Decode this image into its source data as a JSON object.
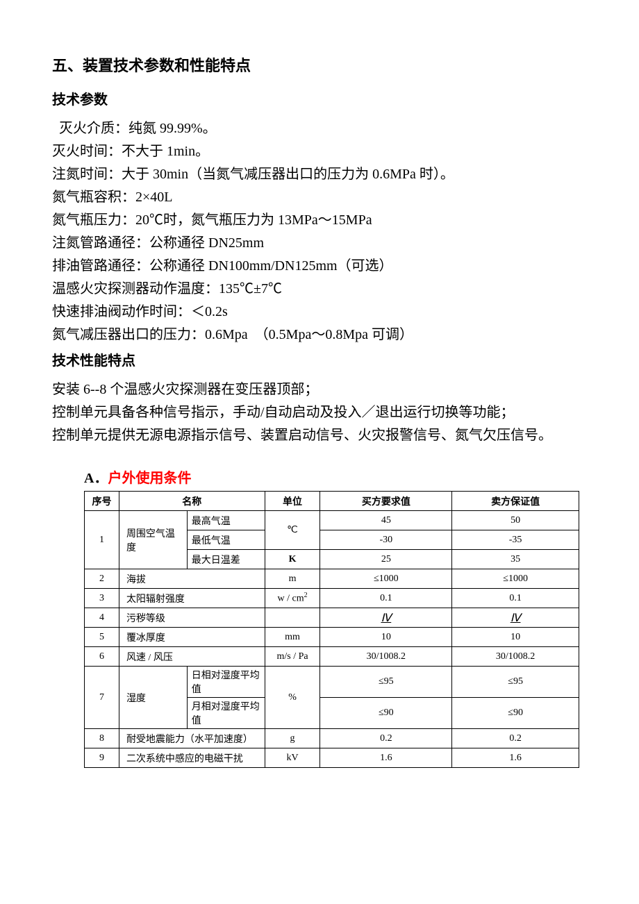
{
  "heading_main": "五、装置技术参数和性能特点",
  "heading_tech_params": "技术参数",
  "tech_params": [
    "灭火介质：纯氮 99.99%。",
    "灭火时间：不大于 1min。",
    "注氮时间：大于 30min（当氮气减压器出口的压力为 0.6MPa 时）。",
    "氮气瓶容积：2×40L",
    "氮气瓶压力：20℃时，氮气瓶压力为 13MPa～15MPa",
    "注氮管路通径：公称通径 DN25mm",
    "排油管路通径：公称通径 DN100mm/DN125mm（可选）",
    "温感火灾探测器动作温度：135℃±7℃",
    "快速排油阀动作时间：＜0.2s",
    "氮气减压器出口的压力：0.6Mpa　（0.5Mpa～0.8Mpa 可调）"
  ],
  "heading_tech_feature": "技术性能特点",
  "tech_features": [
    "安装 6--8 个温感火灾探测器在变压器顶部；",
    "控制单元具备各种信号指示，手动/自动启动及投入／退出运行切换等功能；",
    "控制单元提供无源电源指示信号、装置启动信号、火灾报警信号、氮气欠压信号。"
  ],
  "section_a": {
    "prefix": "A．",
    "title": "户外使用条件",
    "headers": {
      "seq": "序号",
      "name": "名称",
      "unit": "单位",
      "buyer": "买方要求值",
      "seller": "卖方保证值"
    },
    "rows": [
      {
        "seq": "1",
        "name": "周围空气温度",
        "sub": "最高气温",
        "unit": "℃",
        "buyer": "45",
        "seller": "50"
      },
      {
        "sub": "最低气温",
        "buyer": "-30",
        "seller": "-35"
      },
      {
        "sub": "最大日温差",
        "unit": "K",
        "unit_bold": true,
        "buyer": "25",
        "seller": "35"
      },
      {
        "seq": "2",
        "name": "海拔",
        "unit": "m",
        "buyer": "≤1000",
        "seller": "≤1000"
      },
      {
        "seq": "3",
        "name": "太阳辐射强度",
        "unit_html": "w / cm<sup>2</sup>",
        "buyer": "0.1",
        "seller": "0.1"
      },
      {
        "seq": "4",
        "name": "污秽等级",
        "unit": "",
        "buyer_roman": "Ⅳ",
        "seller_roman": "Ⅳ"
      },
      {
        "seq": "5",
        "name": "覆冰厚度",
        "unit": "mm",
        "buyer": "10",
        "seller": "10"
      },
      {
        "seq": "6",
        "name": "风速 / 风压",
        "unit": "m/s / Pa",
        "buyer": "30/1008.2",
        "seller": "30/1008.2"
      },
      {
        "seq": "7",
        "name": "湿度",
        "sub": "日相对湿度平均值",
        "unit": "%",
        "buyer": "≤95",
        "seller": "≤95"
      },
      {
        "sub": "月相对湿度平均值",
        "buyer": "≤90",
        "seller": "≤90"
      },
      {
        "seq": "8",
        "name": "耐受地震能力（水平加速度）",
        "unit": "g",
        "buyer": "0.2",
        "seller": "0.2"
      },
      {
        "seq": "9",
        "name": "二次系统中感应的电磁干扰",
        "unit": "kV",
        "buyer": "1.6",
        "seller": "1.6"
      }
    ]
  }
}
